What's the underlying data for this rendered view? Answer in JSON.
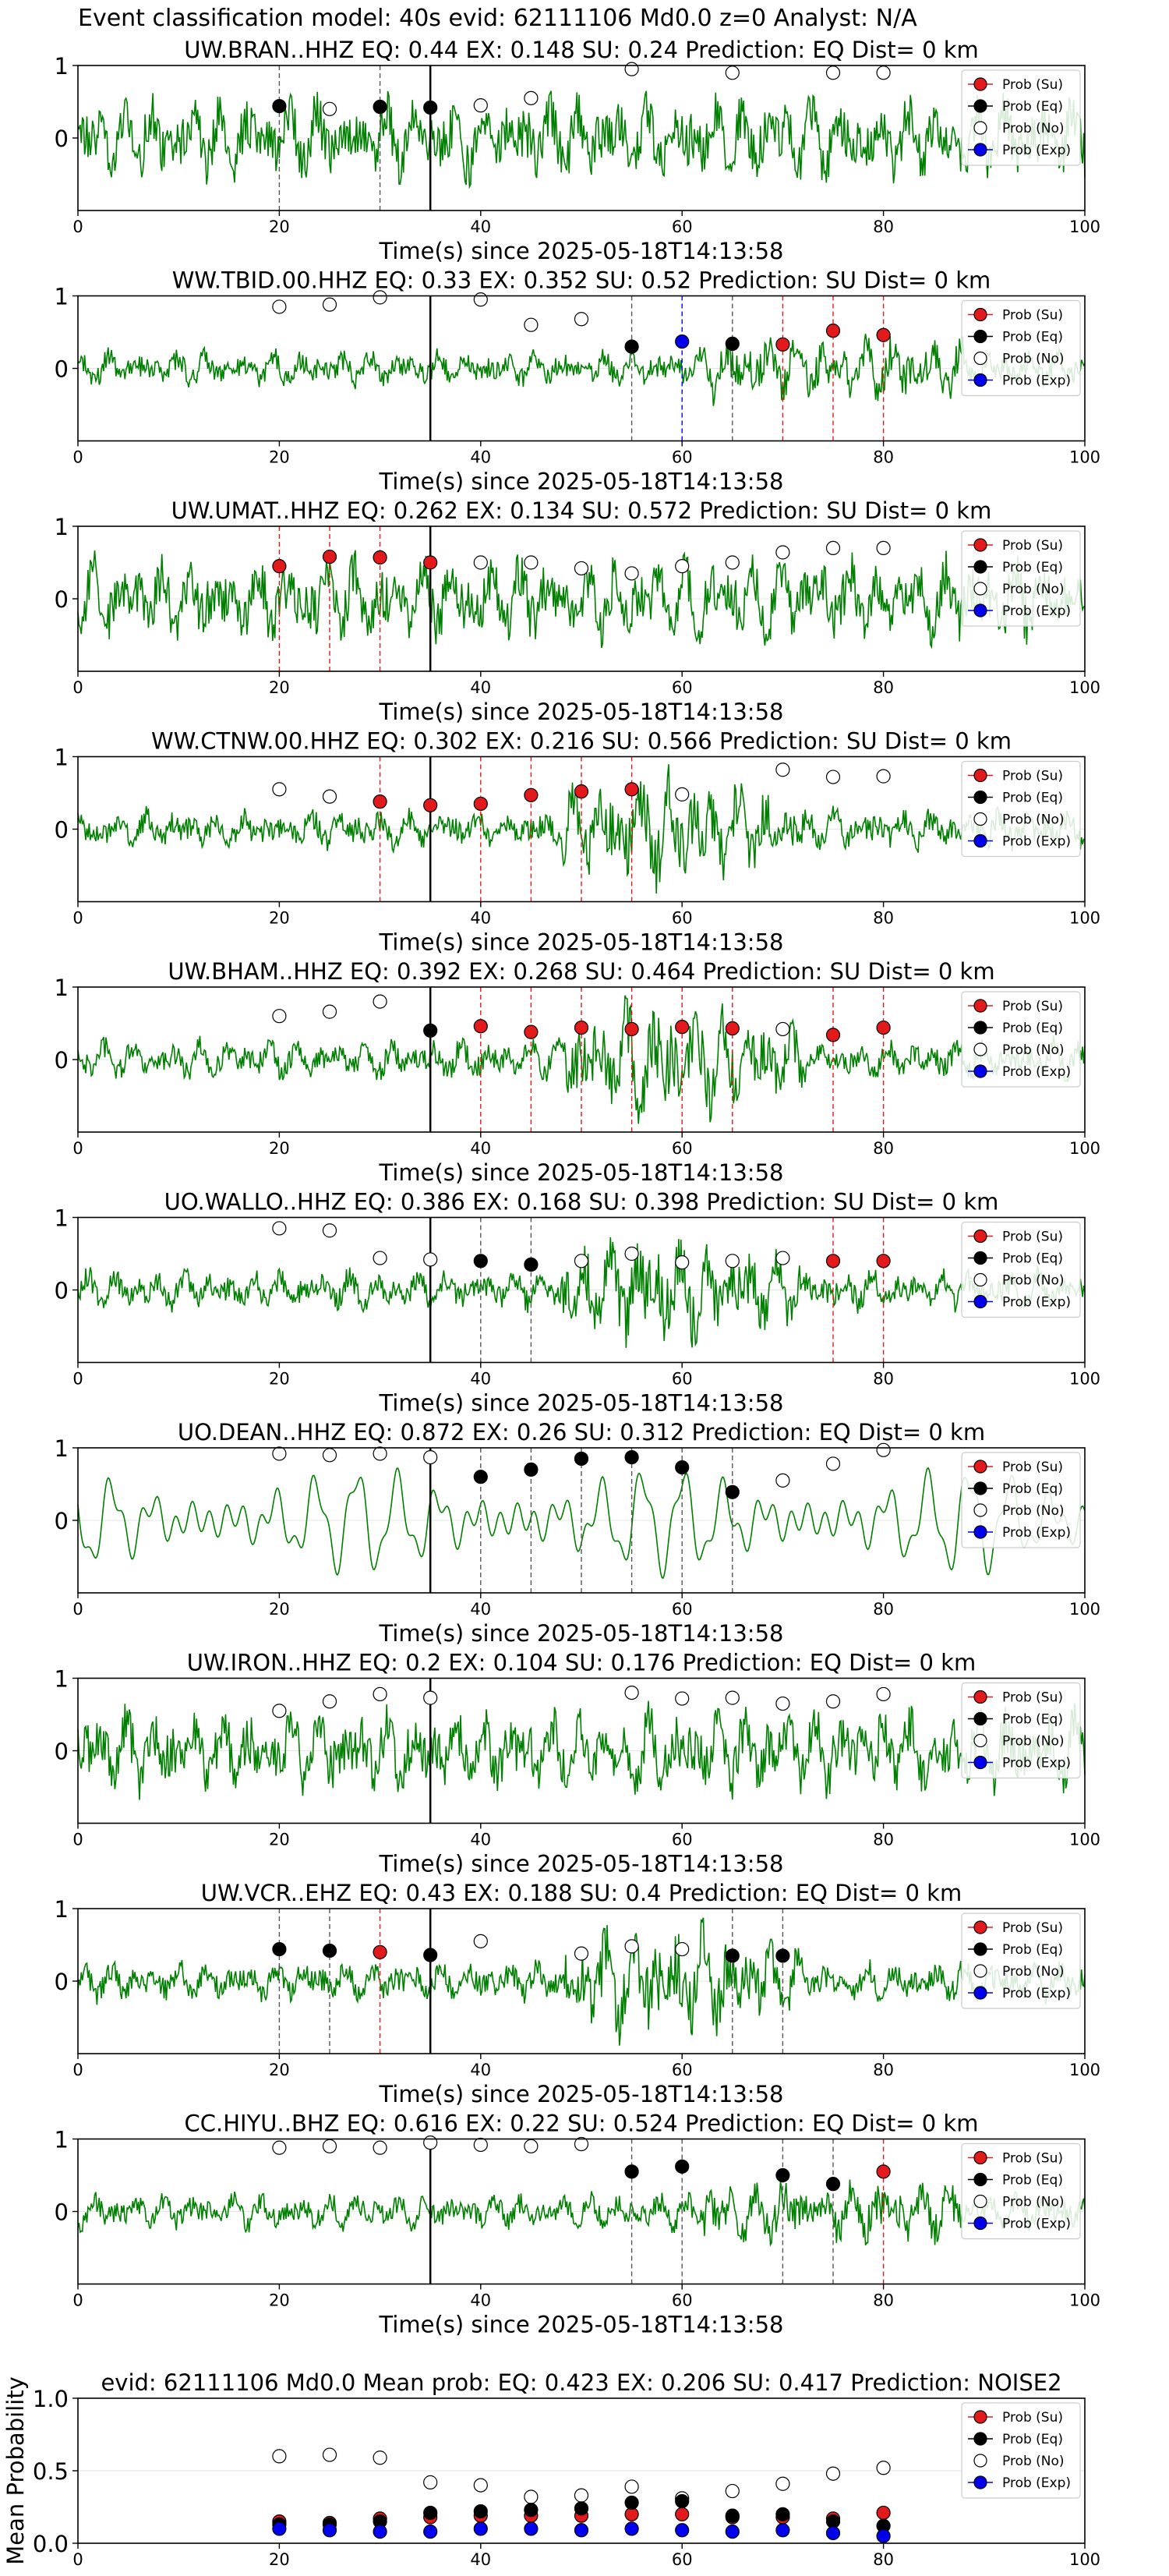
{
  "suptitle": "Event classification model: 40s evid: 62111106 Md0.0 z=0 Analyst: N/A",
  "colors": {
    "trace": "#008000",
    "su": "#e31a1c",
    "eq": "#000000",
    "no": "#ffffff",
    "exp": "#0000ee",
    "pick": "#000000"
  },
  "legend_labels": [
    "Prob (Su)",
    "Prob (Eq)",
    "Prob (No)",
    "Prob (Exp)"
  ],
  "chart_data": [
    {
      "type": "line",
      "title": "UW.BRAN..HHZ    EQ: 0.44   EX: 0.148   SU: 0.24    Prediction: EQ    Dist= 0 km",
      "xlabel": "Time(s) since 2025-05-18T14:13:58",
      "xlim": [
        0,
        100
      ],
      "ylim": [
        -1,
        1
      ],
      "xticks": [
        0,
        20,
        40,
        60,
        80,
        100
      ],
      "yticks": [
        0,
        1
      ],
      "pick_time": 35,
      "trace_style": "noisy",
      "legend": "top-right",
      "su": [],
      "eq": [
        [
          20,
          0.44
        ],
        [
          30,
          0.43
        ],
        [
          35,
          0.42
        ]
      ],
      "no": [
        [
          25,
          0.4
        ],
        [
          40,
          0.45
        ],
        [
          45,
          0.55
        ],
        [
          55,
          0.95
        ],
        [
          65,
          0.9
        ],
        [
          75,
          0.9
        ],
        [
          80,
          0.9
        ]
      ],
      "exp": []
    },
    {
      "type": "line",
      "title": "WW.TBID.00.HHZ   EQ: 0.33   EX: 0.352   SU: 0.52    Prediction: SU    Dist= 0 km",
      "xlabel": "Time(s) since 2025-05-18T14:13:58",
      "xlim": [
        0,
        100
      ],
      "ylim": [
        -1,
        1
      ],
      "xticks": [
        0,
        20,
        40,
        60,
        80,
        100
      ],
      "yticks": [
        0,
        1
      ],
      "pick_time": 35,
      "trace_style": "quiet",
      "legend": "top-right",
      "su": [
        [
          70,
          0.33
        ],
        [
          75,
          0.52
        ],
        [
          80,
          0.46
        ]
      ],
      "eq": [
        [
          55,
          0.3
        ],
        [
          65,
          0.34
        ]
      ],
      "no": [
        [
          20,
          0.85
        ],
        [
          25,
          0.88
        ],
        [
          30,
          0.98
        ],
        [
          40,
          0.95
        ],
        [
          45,
          0.6
        ],
        [
          50,
          0.68
        ]
      ],
      "exp": [
        [
          60,
          0.37
        ]
      ]
    },
    {
      "type": "line",
      "title": "UW.UMAT..HHZ   EQ: 0.262  EX: 0.134  SU: 0.572   Prediction: SU    Dist= 0 km",
      "xlabel": "Time(s) since 2025-05-18T14:13:58",
      "xlim": [
        0,
        100
      ],
      "ylim": [
        -1,
        1
      ],
      "xticks": [
        0,
        20,
        40,
        60,
        80,
        100
      ],
      "yticks": [
        0,
        1
      ],
      "pick_time": 35,
      "trace_style": "noisy",
      "legend": "top-right",
      "su": [
        [
          20,
          0.45
        ],
        [
          25,
          0.58
        ],
        [
          30,
          0.57
        ],
        [
          35,
          0.5
        ]
      ],
      "eq": [],
      "no": [
        [
          40,
          0.5
        ],
        [
          45,
          0.5
        ],
        [
          50,
          0.42
        ],
        [
          55,
          0.35
        ],
        [
          60,
          0.45
        ],
        [
          65,
          0.5
        ],
        [
          70,
          0.64
        ],
        [
          75,
          0.7
        ],
        [
          80,
          0.7
        ]
      ],
      "exp": []
    },
    {
      "type": "line",
      "title": "WW.CTNW.00.HHZ   EQ: 0.302  EX: 0.216  SU: 0.566   Prediction: SU    Dist= 0 km",
      "xlabel": "Time(s) since 2025-05-18T14:13:58",
      "xlim": [
        0,
        100
      ],
      "ylim": [
        -1,
        1
      ],
      "xticks": [
        0,
        20,
        40,
        60,
        80,
        100
      ],
      "yticks": [
        0,
        1
      ],
      "pick_time": 35,
      "trace_style": "burst",
      "legend": "top-right",
      "su": [
        [
          30,
          0.38
        ],
        [
          35,
          0.33
        ],
        [
          40,
          0.35
        ],
        [
          45,
          0.47
        ],
        [
          50,
          0.52
        ],
        [
          55,
          0.55
        ]
      ],
      "eq": [],
      "no": [
        [
          20,
          0.55
        ],
        [
          25,
          0.45
        ],
        [
          60,
          0.48
        ],
        [
          70,
          0.82
        ],
        [
          75,
          0.72
        ],
        [
          80,
          0.73
        ]
      ],
      "exp": []
    },
    {
      "type": "line",
      "title": "UW.BHAM..HHZ   EQ: 0.392  EX: 0.268  SU: 0.464   Prediction: SU    Dist= 0 km",
      "xlabel": "Time(s) since 2025-05-18T14:13:58",
      "xlim": [
        0,
        100
      ],
      "ylim": [
        -1,
        1
      ],
      "xticks": [
        0,
        20,
        40,
        60,
        80,
        100
      ],
      "yticks": [
        0,
        1
      ],
      "pick_time": 35,
      "trace_style": "burst",
      "legend": "top-right",
      "su": [
        [
          40,
          0.46
        ],
        [
          45,
          0.38
        ],
        [
          50,
          0.44
        ],
        [
          55,
          0.42
        ],
        [
          60,
          0.45
        ],
        [
          65,
          0.43
        ],
        [
          75,
          0.34
        ],
        [
          80,
          0.44
        ]
      ],
      "eq": [
        [
          35,
          0.4
        ]
      ],
      "no": [
        [
          20,
          0.6
        ],
        [
          25,
          0.66
        ],
        [
          30,
          0.8
        ],
        [
          70,
          0.42
        ]
      ],
      "exp": []
    },
    {
      "type": "line",
      "title": "UO.WALLO..HHZ   EQ: 0.386  EX: 0.168  SU: 0.398   Prediction: SU    Dist= 0 km",
      "xlabel": "Time(s) since 2025-05-18T14:13:58",
      "xlim": [
        0,
        100
      ],
      "ylim": [
        -1,
        1
      ],
      "xticks": [
        0,
        20,
        40,
        60,
        80,
        100
      ],
      "yticks": [
        0,
        1
      ],
      "pick_time": 35,
      "trace_style": "burst",
      "legend": "top-right",
      "su": [
        [
          75,
          0.4
        ],
        [
          80,
          0.4
        ]
      ],
      "eq": [
        [
          40,
          0.4
        ],
        [
          45,
          0.35
        ]
      ],
      "no": [
        [
          20,
          0.85
        ],
        [
          25,
          0.82
        ],
        [
          30,
          0.44
        ],
        [
          35,
          0.42
        ],
        [
          50,
          0.4
        ],
        [
          55,
          0.5
        ],
        [
          60,
          0.38
        ],
        [
          65,
          0.4
        ],
        [
          70,
          0.44
        ]
      ],
      "exp": []
    },
    {
      "type": "line",
      "title": "UO.DEAN..HHZ   EQ: 0.872  EX: 0.26  SU: 0.312   Prediction: EQ    Dist= 0 km",
      "xlabel": "Time(s) since 2025-05-18T14:13:58",
      "xlim": [
        0,
        100
      ],
      "ylim": [
        -1,
        1
      ],
      "xticks": [
        0,
        20,
        40,
        60,
        80,
        100
      ],
      "yticks": [
        0,
        1
      ],
      "pick_time": 35,
      "trace_style": "smooth",
      "legend": "top-right",
      "su": [],
      "eq": [
        [
          40,
          0.6
        ],
        [
          45,
          0.7
        ],
        [
          50,
          0.85
        ],
        [
          55,
          0.87
        ],
        [
          60,
          0.73
        ],
        [
          65,
          0.39
        ]
      ],
      "no": [
        [
          20,
          0.92
        ],
        [
          25,
          0.9
        ],
        [
          30,
          0.92
        ],
        [
          35,
          0.87
        ],
        [
          70,
          0.55
        ],
        [
          75,
          0.78
        ],
        [
          80,
          0.97
        ]
      ],
      "exp": []
    },
    {
      "type": "line",
      "title": "UW.IRON..HHZ   EQ: 0.2  EX: 0.104  SU: 0.176   Prediction: EQ    Dist= 0 km",
      "xlabel": "Time(s) since 2025-05-18T14:13:58",
      "xlim": [
        0,
        100
      ],
      "ylim": [
        -1,
        1
      ],
      "xticks": [
        0,
        20,
        40,
        60,
        80,
        100
      ],
      "yticks": [
        0,
        1
      ],
      "pick_time": 35,
      "trace_style": "noisy",
      "legend": "top-right",
      "su": [],
      "eq": [],
      "no": [
        [
          20,
          0.55
        ],
        [
          25,
          0.68
        ],
        [
          30,
          0.78
        ],
        [
          35,
          0.73
        ],
        [
          55,
          0.8
        ],
        [
          60,
          0.72
        ],
        [
          65,
          0.73
        ],
        [
          70,
          0.65
        ],
        [
          75,
          0.68
        ],
        [
          80,
          0.78
        ]
      ],
      "exp": []
    },
    {
      "type": "line",
      "title": "UW.VCR..EHZ   EQ: 0.43  EX: 0.188  SU: 0.4   Prediction: EQ    Dist= 0 km",
      "xlabel": "Time(s) since 2025-05-18T14:13:58",
      "xlim": [
        0,
        100
      ],
      "ylim": [
        -1,
        1
      ],
      "xticks": [
        0,
        20,
        40,
        60,
        80,
        100
      ],
      "yticks": [
        0,
        1
      ],
      "pick_time": 35,
      "trace_style": "burst",
      "legend": "top-right",
      "su": [
        [
          30,
          0.4
        ]
      ],
      "eq": [
        [
          20,
          0.44
        ],
        [
          25,
          0.42
        ],
        [
          35,
          0.36
        ],
        [
          65,
          0.35
        ],
        [
          70,
          0.35
        ]
      ],
      "no": [
        [
          40,
          0.55
        ],
        [
          50,
          0.38
        ],
        [
          55,
          0.48
        ],
        [
          60,
          0.44
        ]
      ],
      "exp": []
    },
    {
      "type": "line",
      "title": "CC.HIYU..BHZ   EQ: 0.616  EX: 0.22  SU: 0.524   Prediction: EQ    Dist= 0 km",
      "xlabel": "Time(s) since 2025-05-18T14:13:58",
      "xlim": [
        0,
        100
      ],
      "ylim": [
        -1,
        1
      ],
      "xticks": [
        0,
        20,
        40,
        60,
        80,
        100
      ],
      "yticks": [
        0,
        1
      ],
      "pick_time": 35,
      "trace_style": "quiet",
      "legend": "top-right",
      "su": [
        [
          80,
          0.55
        ]
      ],
      "eq": [
        [
          55,
          0.55
        ],
        [
          60,
          0.62
        ],
        [
          70,
          0.5
        ],
        [
          75,
          0.38
        ]
      ],
      "no": [
        [
          20,
          0.88
        ],
        [
          25,
          0.9
        ],
        [
          30,
          0.88
        ],
        [
          35,
          0.95
        ],
        [
          40,
          0.92
        ],
        [
          45,
          0.9
        ],
        [
          50,
          0.93
        ]
      ],
      "exp": []
    },
    {
      "type": "scatter",
      "title": "evid: 62111106   Md0.0   Mean prob:   EQ: 0.423   EX: 0.206   SU: 0.417   Prediction: NOISE2",
      "ylabel": "Mean Probability",
      "xlim": [
        0,
        100
      ],
      "ylim": [
        0,
        1
      ],
      "xticks": [
        0,
        20,
        40,
        60,
        80,
        100
      ],
      "yticks": [
        0,
        0.5,
        1
      ],
      "ytick_labels": [
        "0.0",
        "0.5",
        "1.0"
      ],
      "legend": "top-right",
      "su": [
        [
          20,
          0.15
        ],
        [
          25,
          0.14
        ],
        [
          30,
          0.17
        ],
        [
          35,
          0.18
        ],
        [
          40,
          0.19
        ],
        [
          45,
          0.19
        ],
        [
          50,
          0.19
        ],
        [
          55,
          0.2
        ],
        [
          60,
          0.2
        ],
        [
          65,
          0.18
        ],
        [
          70,
          0.18
        ],
        [
          75,
          0.17
        ],
        [
          80,
          0.21
        ]
      ],
      "eq": [
        [
          20,
          0.13
        ],
        [
          25,
          0.13
        ],
        [
          30,
          0.15
        ],
        [
          35,
          0.21
        ],
        [
          40,
          0.22
        ],
        [
          45,
          0.23
        ],
        [
          50,
          0.24
        ],
        [
          55,
          0.28
        ],
        [
          60,
          0.29
        ],
        [
          65,
          0.19
        ],
        [
          70,
          0.2
        ],
        [
          75,
          0.15
        ],
        [
          80,
          0.12
        ]
      ],
      "no": [
        [
          20,
          0.6
        ],
        [
          25,
          0.61
        ],
        [
          30,
          0.59
        ],
        [
          35,
          0.42
        ],
        [
          40,
          0.4
        ],
        [
          45,
          0.32
        ],
        [
          50,
          0.33
        ],
        [
          55,
          0.39
        ],
        [
          60,
          0.31
        ],
        [
          65,
          0.36
        ],
        [
          70,
          0.41
        ],
        [
          75,
          0.48
        ],
        [
          80,
          0.52
        ]
      ],
      "exp": [
        [
          20,
          0.1
        ],
        [
          25,
          0.09
        ],
        [
          30,
          0.08
        ],
        [
          35,
          0.08
        ],
        [
          40,
          0.1
        ],
        [
          45,
          0.1
        ],
        [
          50,
          0.09
        ],
        [
          55,
          0.1
        ],
        [
          60,
          0.09
        ],
        [
          65,
          0.08
        ],
        [
          70,
          0.09
        ],
        [
          75,
          0.07
        ],
        [
          80,
          0.05
        ]
      ]
    }
  ]
}
